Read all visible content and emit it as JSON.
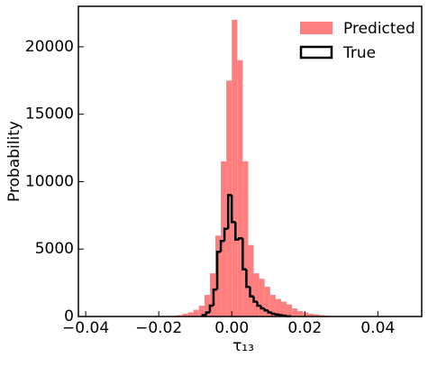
{
  "chart_data": {
    "type": "histogram",
    "xlabel": "τ₁₃",
    "ylabel": "Probability",
    "xlim": [
      -0.042,
      0.052
    ],
    "ylim": [
      0,
      23000
    ],
    "xticks": [
      {
        "value": -0.04,
        "label": "−0.04"
      },
      {
        "value": -0.02,
        "label": "−0.02"
      },
      {
        "value": 0,
        "label": "0.00"
      },
      0.02,
      0.04
    ],
    "yticks": [
      0,
      5000,
      10000,
      15000,
      20000
    ],
    "legend": "upper right",
    "series": [
      {
        "name": "Predicted",
        "color": "#ff7f7f",
        "style": "filled",
        "bins": [
          -0.0165,
          -0.015,
          -0.0135,
          -0.012,
          -0.0105,
          -0.009,
          -0.0075,
          -0.006,
          -0.0045,
          -0.003,
          -0.0015,
          0,
          0.0015,
          0.003,
          0.0045,
          0.006,
          0.0075,
          0.009,
          0.0105,
          0.012,
          0.0135,
          0.015,
          0.0165,
          0.018,
          0.0195,
          0.021,
          0.0225,
          0.024,
          0.0255,
          0.027
        ],
        "counts": [
          50,
          100,
          200,
          300,
          500,
          800,
          1600,
          3200,
          6000,
          11500,
          17500,
          22000,
          19000,
          11500,
          5300,
          3200,
          2800,
          2200,
          1600,
          1300,
          1100,
          900,
          600,
          400,
          300,
          200,
          150,
          100,
          60
        ]
      },
      {
        "name": "True",
        "color": "#000000",
        "style": "step",
        "bins": [
          -0.008,
          -0.007,
          -0.006,
          -0.005,
          -0.004,
          -0.003,
          -0.002,
          -0.001,
          0,
          0.001,
          0.002,
          0.003,
          0.004,
          0.005,
          0.006,
          0.007,
          0.008,
          0.009,
          0.01,
          0.011,
          0.012,
          0.013,
          0.014,
          0.015,
          0.016
        ],
        "counts": [
          100,
          300,
          800,
          2000,
          4800,
          5600,
          6500,
          9000,
          7000,
          5700,
          5800,
          3500,
          2200,
          1500,
          1100,
          800,
          600,
          450,
          300,
          200,
          150,
          100,
          60,
          20
        ]
      }
    ]
  }
}
